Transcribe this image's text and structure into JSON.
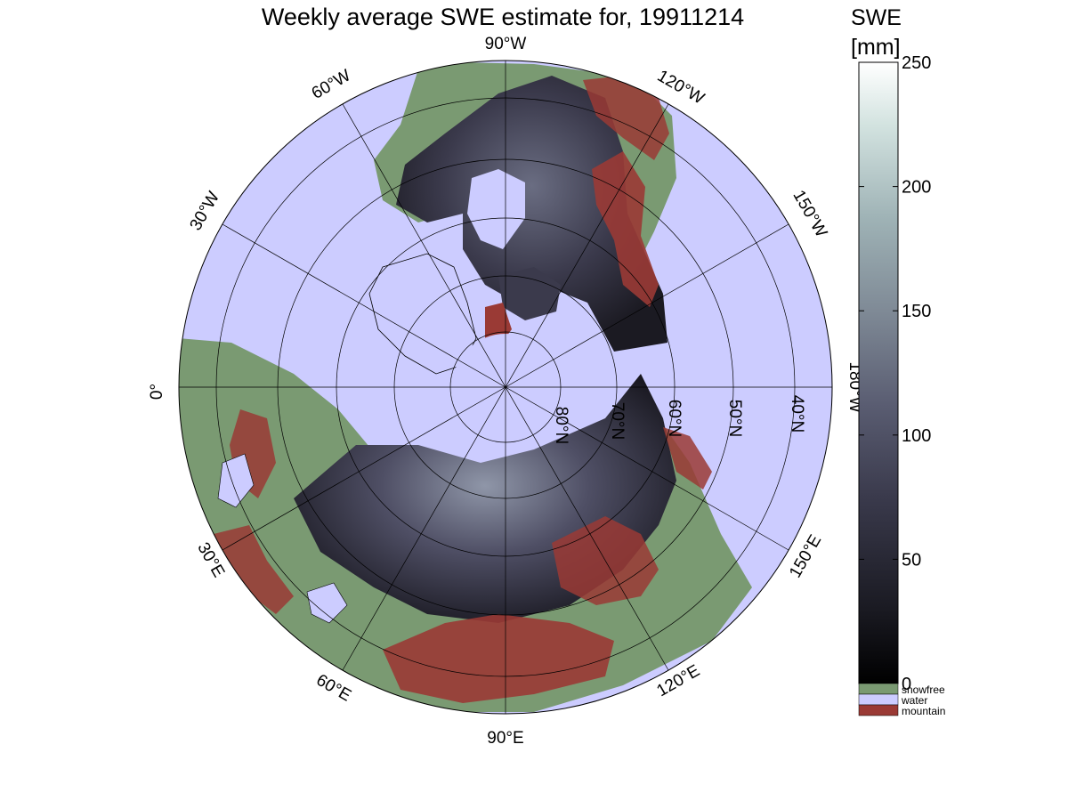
{
  "title": "Weekly average SWE estimate for, 19911214",
  "colorbar": {
    "title_line1": "SWE",
    "title_line2": "[mm]",
    "ticks": [
      "250",
      "200",
      "150",
      "100",
      "50",
      "0"
    ],
    "tick_values": [
      250,
      200,
      150,
      100,
      50,
      0
    ],
    "range": [
      0,
      250
    ],
    "categories": [
      {
        "label": "snowfree",
        "color": "#7a9a72"
      },
      {
        "label": "water",
        "color": "#ccccff"
      },
      {
        "label": "mountain",
        "color": "#9a3a35"
      }
    ]
  },
  "map": {
    "projection": "north polar stereographic",
    "longitude_labels": [
      {
        "text": "90°W",
        "lon": -90
      },
      {
        "text": "120°W",
        "lon": -120
      },
      {
        "text": "150°W",
        "lon": -150
      },
      {
        "text": "180°W",
        "lon": 180
      },
      {
        "text": "150°E",
        "lon": 150
      },
      {
        "text": "120°E",
        "lon": 120
      },
      {
        "text": "90°E",
        "lon": 90
      },
      {
        "text": "60°E",
        "lon": 60
      },
      {
        "text": "30°E",
        "lon": 30
      },
      {
        "text": "0°",
        "lon": 0
      },
      {
        "text": "30°W",
        "lon": -30
      },
      {
        "text": "60°W",
        "lon": -60
      }
    ],
    "latitude_labels": [
      "80°N",
      "70°N",
      "60°N",
      "50°N",
      "40°N"
    ],
    "latitudes": [
      80,
      70,
      60,
      50,
      40
    ],
    "colors": {
      "water": "#ccccff",
      "snowfree": "#7a9a72",
      "mountain": "#9a3a35",
      "swe_dark": "#15141c",
      "swe_mid": "#4a4a60",
      "swe_light": "#8f96a8"
    }
  }
}
